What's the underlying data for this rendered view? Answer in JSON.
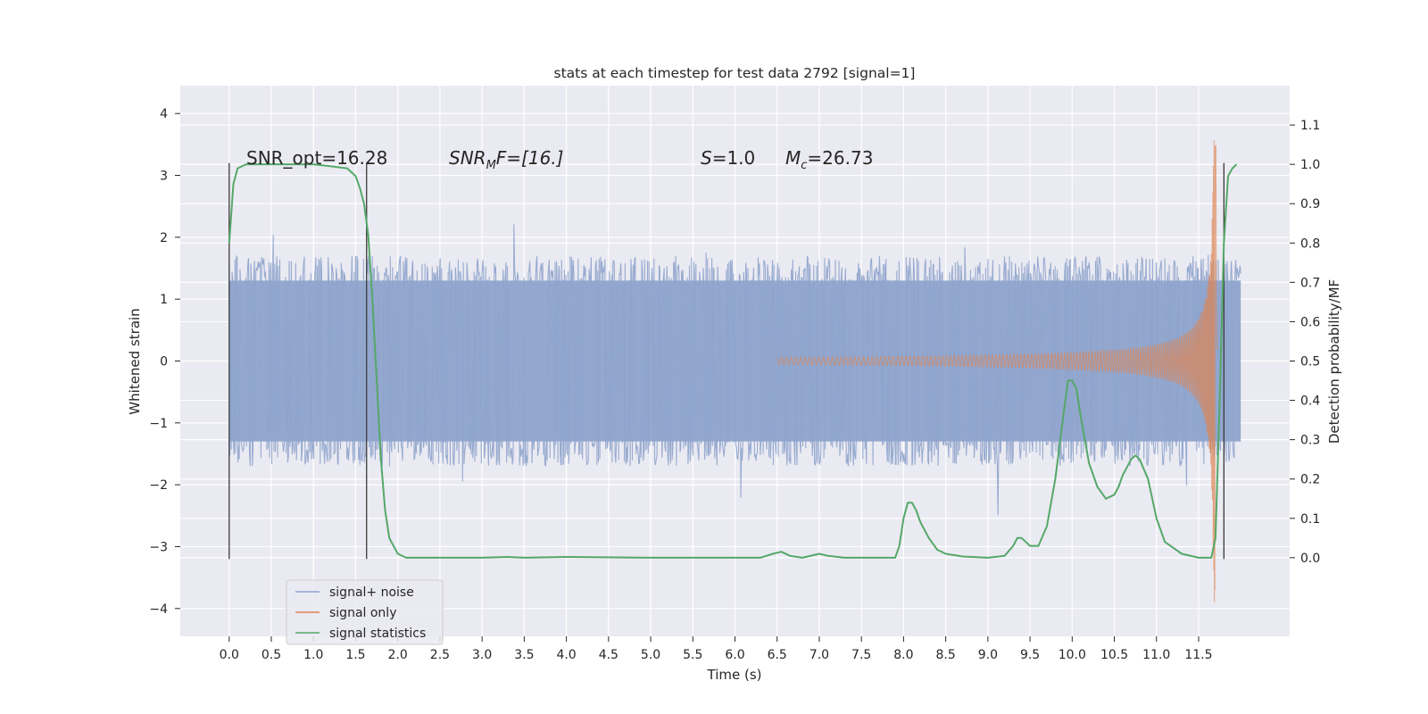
{
  "chart_data": {
    "type": "line",
    "title": "stats at each timestep for test data 2792 [signal=1]",
    "xlabel": "Time (s)",
    "ylabel_left": "Whitened strain",
    "ylabel_right": "Detection probability/MF",
    "xlim": [
      -0.58,
      12.58
    ],
    "ylim_left": [
      -4.45,
      4.45
    ],
    "ylim_right": [
      -0.2,
      1.2
    ],
    "grid": true,
    "legend_position": "lower-left",
    "xticks": [
      "0.0",
      "0.5",
      "1.0",
      "1.5",
      "2.0",
      "2.5",
      "3.0",
      "3.5",
      "4.0",
      "4.5",
      "5.0",
      "5.5",
      "6.0",
      "6.5",
      "7.0",
      "7.5",
      "8.0",
      "8.5",
      "9.0",
      "9.5",
      "10.0",
      "10.5",
      "11.0",
      "11.5"
    ],
    "yticks_left": [
      "4",
      "3",
      "2",
      "1",
      "0",
      "−1",
      "−2",
      "−3",
      "−4"
    ],
    "yticks_right": [
      "1.1",
      "1.0",
      "0.9",
      "0.8",
      "0.7",
      "0.6",
      "0.5",
      "0.4",
      "0.3",
      "0.2",
      "0.1",
      "0.0"
    ],
    "annotations": {
      "snr_opt": "SNR_opt=16.28",
      "snr_mf_base": "SNR",
      "snr_mf_sub": "M",
      "snr_mf_tail": "F=[16.]",
      "s_var": "S",
      "s_val": "=1.0",
      "mc_var": "M",
      "mc_sub": "c",
      "mc_val": "=26.73"
    },
    "vlines": [
      {
        "x": 0.0,
        "y_from": -3.2,
        "y_to": 3.2
      },
      {
        "x": 1.63,
        "y_from": -3.2,
        "y_to": 3.2
      },
      {
        "x": 11.8,
        "y_from": -3.2,
        "y_to": 3.2
      }
    ],
    "series": [
      {
        "name": "signal+ noise",
        "color": "#8fa4cc",
        "axis": "left",
        "x_range": [
          0.0,
          12.0
        ],
        "amplitude_typical": 1.75,
        "peak_max": 4.1,
        "peak_min": -4.1
      },
      {
        "name": "signal only",
        "color": "#dd8452",
        "axis": "left",
        "type": "chirp",
        "merger_time": 11.7,
        "peak_amplitude": 3.9,
        "ringdown_end": 11.72
      },
      {
        "name": "signal statistics",
        "color": "#55a868",
        "axis": "right",
        "x": [
          0.0,
          0.05,
          0.1,
          0.2,
          0.3,
          0.5,
          1.0,
          1.2,
          1.4,
          1.5,
          1.55,
          1.6,
          1.65,
          1.7,
          1.75,
          1.8,
          1.85,
          1.9,
          2.0,
          2.1,
          2.3,
          3.0,
          3.3,
          3.5,
          4.0,
          5.0,
          6.0,
          6.3,
          6.45,
          6.55,
          6.65,
          6.8,
          7.0,
          7.1,
          7.3,
          7.9,
          7.95,
          8.0,
          8.05,
          8.1,
          8.15,
          8.2,
          8.3,
          8.4,
          8.5,
          8.7,
          9.0,
          9.2,
          9.3,
          9.35,
          9.4,
          9.5,
          9.6,
          9.7,
          9.8,
          9.9,
          9.95,
          10.0,
          10.05,
          10.1,
          10.15,
          10.2,
          10.3,
          10.4,
          10.5,
          10.55,
          10.6,
          10.7,
          10.75,
          10.8,
          10.9,
          11.0,
          11.1,
          11.3,
          11.5,
          11.65,
          11.7,
          11.75,
          11.8,
          11.85,
          11.9,
          11.95
        ],
        "y": [
          0.8,
          0.95,
          0.99,
          1.0,
          1.0,
          1.0,
          1.0,
          0.995,
          0.99,
          0.97,
          0.94,
          0.9,
          0.82,
          0.65,
          0.45,
          0.25,
          0.12,
          0.05,
          0.01,
          0.0,
          0.0,
          0.0,
          0.002,
          0.0,
          0.002,
          0.0,
          0.0,
          0.0,
          0.01,
          0.015,
          0.005,
          0.0,
          0.01,
          0.005,
          0.0,
          0.0,
          0.03,
          0.1,
          0.14,
          0.14,
          0.12,
          0.09,
          0.05,
          0.02,
          0.01,
          0.003,
          0.0,
          0.005,
          0.03,
          0.05,
          0.05,
          0.03,
          0.03,
          0.08,
          0.2,
          0.37,
          0.45,
          0.45,
          0.43,
          0.36,
          0.3,
          0.24,
          0.18,
          0.15,
          0.16,
          0.18,
          0.21,
          0.25,
          0.26,
          0.25,
          0.2,
          0.1,
          0.04,
          0.01,
          0.0,
          0.0,
          0.05,
          0.4,
          0.8,
          0.97,
          0.99,
          1.0
        ]
      }
    ]
  }
}
